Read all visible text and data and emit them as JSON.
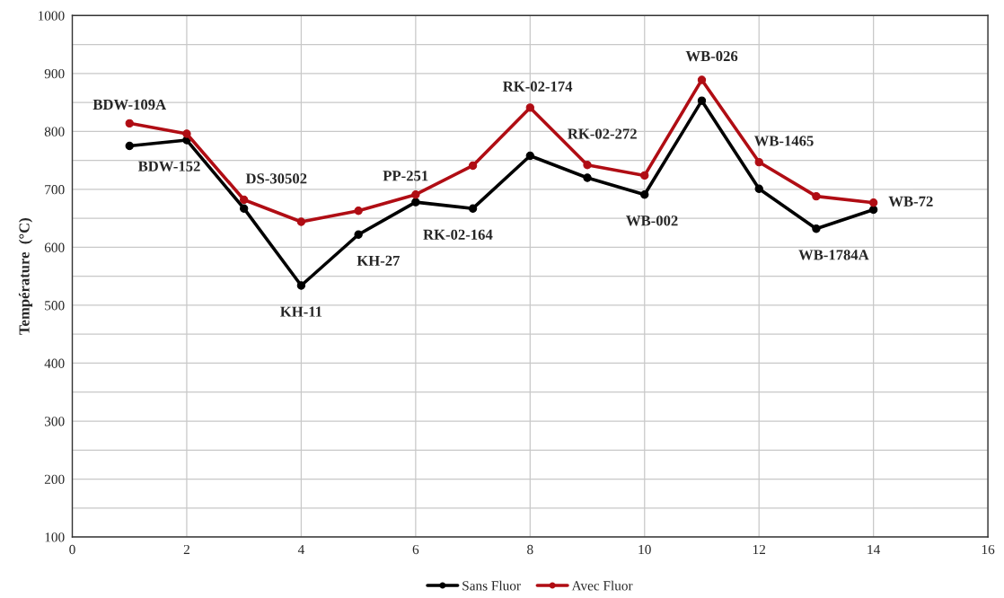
{
  "chart_data": {
    "type": "line",
    "ylabel": "Température  (°C)",
    "x": [
      1,
      2,
      3,
      4,
      5,
      6,
      7,
      8,
      9,
      10,
      11,
      12,
      13,
      14
    ],
    "series": [
      {
        "name": "Sans Fluor",
        "color": "#000000",
        "values": [
          775,
          785,
          667,
          534,
          622,
          678,
          667,
          758,
          720,
          691,
          853,
          701,
          632,
          665
        ]
      },
      {
        "name": "Avec Fluor",
        "color": "#b00d14",
        "values": [
          814,
          796,
          682,
          644,
          663,
          691,
          741,
          841,
          742,
          724,
          889,
          747,
          688,
          677
        ]
      }
    ],
    "xlim": [
      0,
      16
    ],
    "xticks": [
      0,
      2,
      4,
      6,
      8,
      10,
      12,
      14,
      16
    ],
    "ylim": [
      100,
      1000
    ],
    "yticks": [
      100,
      {
        "value": 150,
        "label": null
      },
      200,
      {
        "value": 250,
        "label": null
      },
      300,
      {
        "value": 350,
        "label": null
      },
      400,
      {
        "value": 450,
        "label": null
      },
      500,
      {
        "value": 550,
        "label": null
      },
      600,
      {
        "value": 650,
        "label": null
      },
      700,
      {
        "value": 750,
        "label": null
      },
      800,
      {
        "value": 850,
        "label": null
      },
      900,
      {
        "value": 950,
        "label": null
      },
      1000
    ],
    "grid": true,
    "legend": "bottom",
    "marker": "circle",
    "line_style": "solid",
    "annotations": [
      {
        "text": "BDW-109A",
        "x": 1,
        "y": 814
      },
      {
        "text": "BDW-152",
        "x": 2,
        "y": 785
      },
      {
        "text": "DS-30502",
        "x": 3,
        "y": 682
      },
      {
        "text": "KH-11",
        "x": 4,
        "y": 534
      },
      {
        "text": "KH-27",
        "x": 5,
        "y": 622
      },
      {
        "text": "PP-251",
        "x": 6,
        "y": 691
      },
      {
        "text": "RK-02-164",
        "x": 7,
        "y": 667
      },
      {
        "text": "RK-02-174",
        "x": 8,
        "y": 841
      },
      {
        "text": "RK-02-272",
        "x": 9,
        "y": 742
      },
      {
        "text": "WB-002",
        "x": 10,
        "y": 691
      },
      {
        "text": "WB-026",
        "x": 11,
        "y": 889
      },
      {
        "text": "WB-1465",
        "x": 12,
        "y": 747
      },
      {
        "text": "WB-1784A",
        "x": 13,
        "y": 632
      },
      {
        "text": "WB-72",
        "x": 14,
        "y": 677
      }
    ]
  }
}
